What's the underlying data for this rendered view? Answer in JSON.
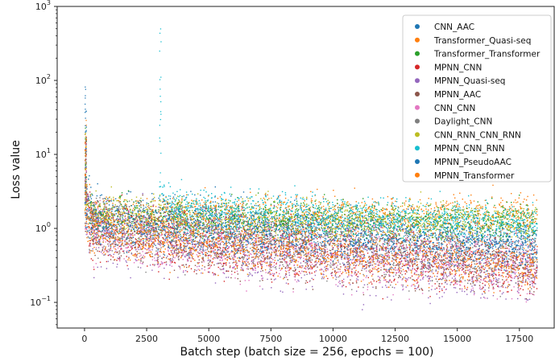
{
  "chart_data": {
    "type": "scatter",
    "title": "",
    "xlabel": "Batch step (batch size = 256, epochs = 100)",
    "ylabel": "Loss value",
    "xlim": [
      -1100,
      18900
    ],
    "ylim": [
      0.045,
      1000
    ],
    "yscale": "log",
    "grid": false,
    "legend_position": "top-right",
    "x_ticks": [
      0,
      2500,
      5000,
      7500,
      10000,
      12500,
      15000,
      17500
    ],
    "y_ticks": [
      {
        "value": 0.1,
        "base": "10",
        "exp": "−1"
      },
      {
        "value": 1,
        "base": "10",
        "exp": "0"
      },
      {
        "value": 10,
        "base": "10",
        "exp": "1"
      },
      {
        "value": 100,
        "base": "10",
        "exp": "2"
      },
      {
        "value": 1000,
        "base": "10",
        "exp": "3"
      }
    ],
    "series": [
      {
        "name": "CNN_AAC",
        "color": "#1f77b4",
        "x_start": 0,
        "x_end": 18200,
        "start_mid": 1.6,
        "end_mid": 0.7,
        "spread": 1.5,
        "spike": 45
      },
      {
        "name": "Transformer_Quasi-seq",
        "color": "#ff7f0e",
        "x_start": 0,
        "x_end": 18200,
        "start_mid": 1.5,
        "end_mid": 1.6,
        "spread": 1.35,
        "spike": 30
      },
      {
        "name": "Transformer_Transformer",
        "color": "#2ca02c",
        "x_start": 0,
        "x_end": 18200,
        "start_mid": 1.5,
        "end_mid": 1.2,
        "spread": 1.35,
        "spike": 25
      },
      {
        "name": "MPNN_CNN",
        "color": "#d62728",
        "x_start": 0,
        "x_end": 18200,
        "start_mid": 1.1,
        "end_mid": 0.3,
        "spread": 1.6,
        "spike": 20
      },
      {
        "name": "MPNN_Quasi-seq",
        "color": "#9467bd",
        "x_start": 0,
        "x_end": 18200,
        "start_mid": 1.0,
        "end_mid": 0.28,
        "spread": 1.7,
        "spike": 15
      },
      {
        "name": "MPNN_AAC",
        "color": "#8c564b",
        "x_start": 0,
        "x_end": 18200,
        "start_mid": 1.1,
        "end_mid": 0.33,
        "spread": 1.6,
        "spike": 20
      },
      {
        "name": "CNN_CNN",
        "color": "#e377c2",
        "x_start": 0,
        "x_end": 18200,
        "start_mid": 1.0,
        "end_mid": 0.3,
        "spread": 1.6,
        "spike": 15
      },
      {
        "name": "Daylight_CNN",
        "color": "#7f7f7f",
        "x_start": 0,
        "x_end": 18200,
        "start_mid": 1.2,
        "end_mid": 0.35,
        "spread": 1.6,
        "spike": 20
      },
      {
        "name": "CNN_RNN_CNN_RNN",
        "color": "#bcbd22",
        "x_start": 0,
        "x_end": 18200,
        "start_mid": 1.6,
        "end_mid": 1.2,
        "spread": 1.35,
        "spike": 20
      },
      {
        "name": "MPNN_CNN_RNN",
        "color": "#17becf",
        "x_start": 3000,
        "x_end": 18200,
        "start_mid": 2.1,
        "end_mid": 1.15,
        "spread": 1.35,
        "spike": 600
      },
      {
        "name": "MPNN_PseudoAAC",
        "color": "#1f77b4",
        "x_start": 0,
        "x_end": 18200,
        "start_mid": 1.3,
        "end_mid": 0.6,
        "spread": 1.45,
        "spike": 95
      },
      {
        "name": "MPNN_Transformer",
        "color": "#ff7f0e",
        "x_start": 0,
        "x_end": 18200,
        "start_mid": 0.95,
        "end_mid": 0.32,
        "spread": 1.45,
        "spike": 20
      }
    ]
  }
}
